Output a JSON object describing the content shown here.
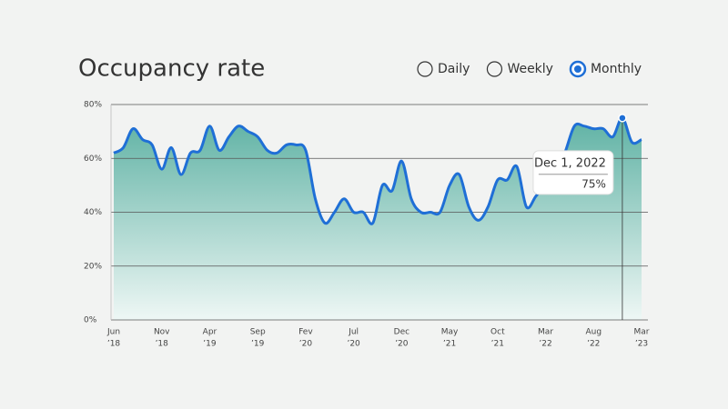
{
  "chart_data": {
    "type": "area",
    "title": "Occupancy rate",
    "options": [
      "Daily",
      "Weekly",
      "Monthly"
    ],
    "selected": "Monthly",
    "categories": [
      [
        "Jun",
        "’18"
      ],
      null,
      null,
      null,
      null,
      [
        "Nov",
        "’18"
      ],
      null,
      null,
      null,
      null,
      [
        "Apr",
        "’19"
      ],
      null,
      null,
      null,
      null,
      [
        "Sep",
        "’19"
      ],
      null,
      null,
      null,
      null,
      [
        "Fev",
        "’20"
      ],
      null,
      null,
      null,
      null,
      [
        "Jul",
        "’20"
      ],
      null,
      null,
      null,
      null,
      [
        "Dec",
        "’20"
      ],
      null,
      null,
      null,
      null,
      [
        "May",
        "’21"
      ],
      null,
      null,
      null,
      null,
      [
        "Oct",
        "’21"
      ],
      null,
      null,
      null,
      null,
      [
        "Mar",
        "’22"
      ],
      null,
      null,
      null,
      null,
      [
        "Aug",
        "’22"
      ],
      null,
      null,
      null,
      null,
      [
        "Mar",
        "’23"
      ]
    ],
    "values": [
      62,
      64,
      71,
      67,
      65,
      56,
      64,
      54,
      62,
      63,
      72,
      63,
      68,
      72,
      70,
      68,
      63,
      62,
      65,
      65,
      63,
      45,
      36,
      40,
      45,
      40,
      40,
      36,
      50,
      48,
      59,
      45,
      40,
      40,
      40,
      50,
      54,
      42,
      37,
      42,
      52,
      52,
      57,
      42,
      46,
      50,
      55,
      62,
      72,
      72,
      71,
      71,
      68,
      75,
      66,
      67
    ],
    "value_labels": [
      null,
      null,
      null,
      null,
      null,
      null,
      null,
      null,
      null,
      null,
      null,
      null,
      null,
      null,
      null,
      null,
      null,
      null,
      null,
      null,
      null,
      null,
      null,
      null,
      null,
      null,
      null,
      null,
      null,
      null,
      null,
      null,
      null,
      null,
      null,
      null,
      null,
      null,
      null,
      null,
      null,
      null,
      null,
      null,
      null,
      null,
      null,
      null,
      null,
      null,
      null,
      null,
      null,
      "75%",
      null,
      null
    ],
    "tooltip_title": "Dec 1, 2022",
    "color": "#1f6fd6",
    "ylim": [
      0,
      80
    ],
    "yticks": [
      {
        "value": 0,
        "label": "0%"
      },
      {
        "value": 20,
        "label": "20%"
      },
      {
        "value": 40,
        "label": "40%"
      },
      {
        "value": 60,
        "label": "60%"
      },
      {
        "value": 80,
        "label": "80%"
      }
    ],
    "grid": true
  }
}
